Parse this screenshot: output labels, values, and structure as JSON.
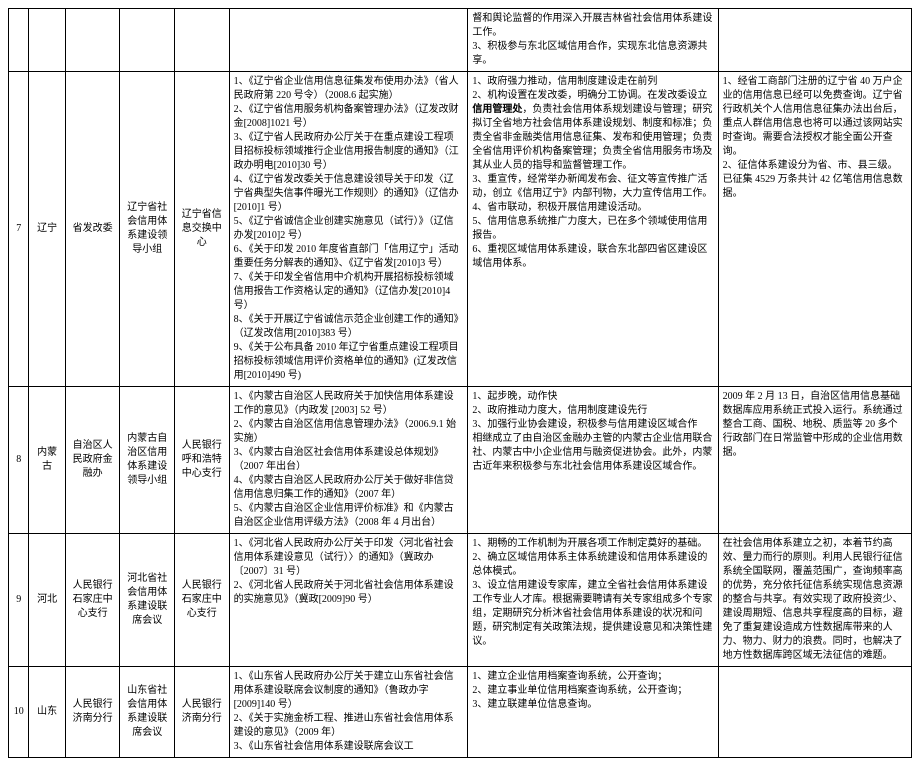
{
  "rows": [
    {
      "seq": "",
      "province": "",
      "lead": "",
      "body": "",
      "support": "",
      "docs": "",
      "features": "督和舆论监督的作用深入开展吉林省社会信用体系建设工作。\n3、积极参与东北区域信用合作，实现东北信息资源共享。",
      "progress": "",
      "showFirst5": false,
      "showLast": false
    },
    {
      "seq": "7",
      "province": "辽宁",
      "lead": "省发改委",
      "body": "辽宁省社会信用体系建设领导小组",
      "support": "辽宁省信息交换中心",
      "docs": "1、《辽宁省企业信用信息征集发布使用办法》（省人民政府第 220 号令）（2008.6 起实施）\n2、《辽宁省信用服务机构备案管理办法》（辽发改财金[2008]1021 号）\n3、《辽宁省人民政府办公厅关于在重点建设工程项目招标投标领域推行企业信用报告制度的通知》（江政办明电[2010]30 号）\n4、《辽宁省发改委关于信息建设领导关于印发〈辽宁省典型失信事件曝光工作规则〉的通知》（辽信办[2010]1 号）\n5、《辽宁省诚信企业创建实施意见（试行）》（辽信办发[2010]2 号）\n6、《关于印发 2010 年度省直部门「信用辽宁」活动重要任务分解表的通知》、《辽宁省发[2010]3 号）\n7、《关于印发全省信用中介机构开展招标投标领域信用报告工作资格认定的通知》（辽信办发[2010]4 号）\n8、《关于开展辽宁省诚信示范企业创建工作的通知》（辽发改信用[2010]383 号）\n9、《关于公布具备 2010 年辽宁省重点建设工程项目招标投标领域信用评价资格单位的通知》(辽发改信用[2010]490 号)",
      "features": "1、政府强力推动，信用制度建设走在前列\n2、机构设置在发改委，明确分工协调。在发改委设立信用管理处，负责社会信用体系规划建设与管理；研究拟订全省地方社会信用体系建设规划、制度和标准；负责全省非金融类信用信息征集、发布和使用管理；负责全省信用评价机构备案管理；负责全省信用服务市场及其从业人员的指导和监督管理工作。\n3、重宣传，经常举办新闻发布会、征文等宣传推广活动，创立《信用辽宁》内部刊物，大力宣传信用工作。\n4、省市联动，积极开展信用建设活动。\n5、信用信息系统推广力度大，已在多个领域使用信用报告。\n6、重视区域信用体系建设，联合东北部四省区建设区域信用体系。",
      "featuresBoldPhrase": "信用管理处",
      "progress": "1、经省工商部门注册的辽宁省 40 万户企业的信用信息已经可以免费查询。辽宁省行政机关个人信用信息征集办法出台后，重点人群信用信息也将可以通过该网站实时查询。需要合法授权才能全面公开查询。\n2、征信体系建设分为省、市、县三级。已征集 4529 万条共计 42 亿笔信用信息数据。",
      "showFirst5": true,
      "showLast": true
    },
    {
      "seq": "8",
      "province": "内蒙古",
      "lead": "自治区人民政府金融办",
      "body": "内蒙古自治区信用体系建设领导小组",
      "support": "人民银行呼和浩特中心支行",
      "docs": "1、《内蒙古自治区人民政府关于加快信用体系建设工作的意见》（内政发 [2003] 52 号）\n2、《内蒙古自治区信用信息管理办法》（2006.9.1 始实施）\n3、《内蒙古自治区社会信用体系建设总体规划》（2007 年出台）\n4、《内蒙古自治区人民政府办公厅关于做好非信贷信用信息归集工作的通知》（2007 年）\n5、《内蒙古自治区企业信用评价标准》和《内蒙古自治区企业信用评级方法》（2008 年 4 月出台）",
      "features": "1、起步晚，动作快\n2、政府推动力度大，信用制度建设先行\n3、加强行业协会建设，积极参与信用建设区域合作\n   相继成立了由自治区金融办主管的内蒙古企业信用联合社、内蒙古中小企业信用与融资促进协会。此外，内蒙古近年来积极参与东北社会信用体系建设区域合作。",
      "progress": "2009 年 2 月 13 日，自治区信用信息基础数据库应用系统正式投入运行。系统通过整合工商、国税、地税、质监等 20 多个行政部门在日常监管中形成的企业信用数据。",
      "showFirst5": true,
      "showLast": true
    },
    {
      "seq": "9",
      "province": "河北",
      "lead": "人民银行石家庄中心支行",
      "body": "河北省社会信用体系建设联席会议",
      "support": "人民银行石家庄中心支行",
      "docs": "1、《河北省人民政府办公厅关于印发〈河北省社会信用体系建设意见（试行）〉的通知》（冀政办〔2007〕31 号）\n2、《河北省人民政府关于河北省社会信用体系建设的实施意见》（冀政[2009]90 号）",
      "features": "1、期畅的工作机制为开展各项工作制定奠好的基础。\n2、确立区域信用体系主体系统建设和信用体系建设的总体模式。\n3、设立信用建设专家库，建立全省社会信用体系建设工作专业人才库。根据需要聘请有关专家组成多个专家组，定期研究分析沐省社会信用体系建设的状况和问题，研究制定有关政策法规，提供建设意见和决策性建议。",
      "progress": "在社会信用体系建立之初，本着节约高效、量力而行的原则。利用人民银行征信系统全国联网，覆盖范围广，查询频率高的优势，充分依托征信系统实现信息资源的整合与共享。有效实现了政府投资少、建设周期短、信息共享程度高的目标，避免了重复建设造成方性数据库带来的人力、物力、财力的浪费。同时，也解决了地方性数据库跨区域无法征信的难题。",
      "showFirst5": true,
      "showLast": true
    },
    {
      "seq": "10",
      "province": "山东",
      "lead": "人民银行济南分行",
      "body": "山东省社会信用体系建设联席会议",
      "support": "人民银行济南分行",
      "docs": "1、《山东省人民政府办公厅关于建立山东省社会信用体系建设联席会议制度的通知》（鲁政办字[2009]140 号）\n2、《关于实施金桥工程、推进山东省社会信用体系建设的意见》（2009 年）\n3、《山东省社会信用体系建设联席会议工",
      "features": "1、建立企业信用档案查询系统，公开查询；\n2、建立事业单位信用档案查询系统，公开查询；\n3、建立联建单位信息查询。",
      "progress": "",
      "showFirst5": true,
      "showLast": false
    }
  ]
}
